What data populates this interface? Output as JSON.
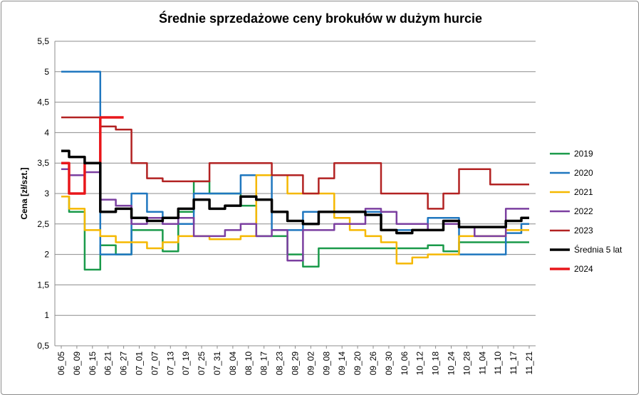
{
  "chart_data": {
    "type": "line",
    "title": "Średnie sprzedażowe ceny brokułów w dużym hurcie",
    "ylabel": "Cena [zł/szt.]",
    "xlabel": "",
    "ylim": [
      0.5,
      5.5
    ],
    "yticks": [
      "0,5",
      "1",
      "1,5",
      "2",
      "2,5",
      "3",
      "3,5",
      "4",
      "4,5",
      "5",
      "5,5"
    ],
    "grid": true,
    "legend_position": "right",
    "categories": [
      "06_05",
      "06_09",
      "06_15",
      "06_21",
      "06_27",
      "07_01",
      "07_07",
      "07_13",
      "07_19",
      "07_25",
      "07_31",
      "08_04",
      "08_10",
      "08_17",
      "08_23",
      "08_29",
      "09_02",
      "09_08",
      "09_14",
      "09_20",
      "09_26",
      "09_30",
      "10_06",
      "10_12",
      "10_18",
      "10_24",
      "10_28",
      "11_04",
      "11_10",
      "11_17",
      "11_21"
    ],
    "series": [
      {
        "name": "2019",
        "color": "#1a9a4a",
        "width": 2.5,
        "values": [
          2.95,
          2.7,
          1.75,
          2.15,
          2.0,
          2.4,
          2.4,
          2.05,
          2.7,
          3.2,
          3.0,
          3.0,
          2.8,
          2.3,
          2.3,
          2.0,
          1.8,
          2.1,
          2.1,
          2.1,
          2.1,
          2.1,
          2.1,
          2.1,
          2.15,
          2.05,
          2.2,
          2.2,
          2.2,
          2.2,
          2.2
        ]
      },
      {
        "name": "2020",
        "color": "#1f77bf",
        "width": 2.5,
        "values": [
          5.0,
          5.0,
          5.0,
          2.0,
          2.0,
          3.0,
          2.7,
          2.5,
          2.5,
          3.0,
          3.0,
          3.0,
          3.3,
          3.3,
          2.4,
          2.4,
          2.7,
          2.7,
          2.7,
          2.7,
          2.7,
          2.4,
          2.4,
          2.4,
          2.6,
          2.6,
          2.0,
          2.0,
          2.0,
          2.35,
          2.5
        ]
      },
      {
        "name": "2021",
        "color": "#f5b800",
        "width": 2.5,
        "values": [
          2.95,
          2.75,
          2.4,
          2.3,
          2.2,
          2.2,
          2.1,
          2.2,
          2.3,
          2.3,
          2.25,
          2.25,
          2.3,
          3.3,
          3.3,
          3.0,
          3.0,
          3.0,
          2.6,
          2.4,
          2.3,
          2.2,
          1.85,
          1.95,
          2.0,
          2.0,
          2.3,
          2.3,
          2.3,
          2.4,
          2.4
        ]
      },
      {
        "name": "2022",
        "color": "#7b3fa0",
        "width": 2.5,
        "values": [
          3.4,
          3.3,
          3.35,
          2.9,
          2.8,
          2.5,
          2.6,
          2.5,
          2.6,
          2.3,
          2.3,
          2.4,
          2.5,
          2.3,
          2.4,
          1.9,
          2.4,
          2.4,
          2.5,
          2.5,
          2.75,
          2.7,
          2.5,
          2.5,
          2.4,
          2.5,
          2.45,
          2.3,
          2.3,
          2.75,
          2.75
        ]
      },
      {
        "name": "2023",
        "color": "#b22222",
        "width": 2.5,
        "values": [
          4.25,
          4.25,
          4.25,
          4.1,
          4.05,
          3.5,
          3.25,
          3.2,
          3.2,
          3.2,
          3.5,
          3.5,
          3.5,
          3.5,
          3.3,
          3.3,
          3.0,
          3.25,
          3.5,
          3.5,
          3.5,
          3.0,
          3.0,
          3.0,
          2.75,
          3.0,
          3.4,
          3.4,
          3.15,
          3.15,
          3.15
        ]
      },
      {
        "name": "Średnia 5 lat",
        "color": "#000000",
        "width": 3.5,
        "values": [
          3.7,
          3.6,
          3.5,
          2.7,
          2.75,
          2.6,
          2.55,
          2.6,
          2.75,
          2.9,
          2.75,
          2.8,
          2.95,
          2.9,
          2.7,
          2.55,
          2.5,
          2.7,
          2.7,
          2.7,
          2.65,
          2.4,
          2.35,
          2.4,
          2.4,
          2.55,
          2.45,
          2.45,
          2.45,
          2.55,
          2.6
        ]
      },
      {
        "name": "2024",
        "color": "#e8161a",
        "width": 3.5,
        "values": [
          3.5,
          3.0,
          3.5,
          4.25,
          4.25,
          null,
          null,
          null,
          null,
          null,
          null,
          null,
          null,
          null,
          null,
          null,
          null,
          null,
          null,
          null,
          null,
          null,
          null,
          null,
          null,
          null,
          null,
          null,
          null,
          null,
          null
        ]
      }
    ]
  }
}
